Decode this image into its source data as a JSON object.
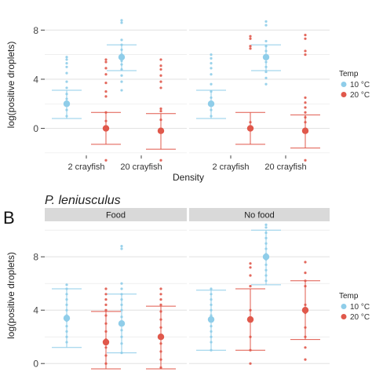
{
  "chart_data": [
    {
      "type": "scatter",
      "ylabel": "log(positive droplets)",
      "xlabel": "Density",
      "categories": [
        "2 crayfish",
        "20 crayfish"
      ],
      "yticks": [
        0,
        4,
        8
      ],
      "ylim": [
        -2.2,
        9.3
      ],
      "grid": true,
      "facets": [
        {
          "series": [
            {
              "name": "10 °C",
              "summary": [
                {
                  "mean": 2.0,
                  "lo": 0.8,
                  "hi": 3.1
                },
                {
                  "mean": 5.8,
                  "lo": 4.7,
                  "hi": 6.8
                }
              ],
              "points": [
                [
                  5.8,
                  5.6,
                  5.3,
                  5.0,
                  4.5,
                  3.8,
                  3.3,
                  2.8,
                  2.4,
                  2.0,
                  1.5,
                  1.0
                ],
                [
                  8.8,
                  8.6,
                  7.2,
                  6.8,
                  6.4,
                  6.0,
                  5.5,
                  5.2,
                  4.8,
                  4.3,
                  3.8,
                  3.1
                ]
              ]
            },
            {
              "name": "20 °C",
              "summary": [
                {
                  "mean": 0.0,
                  "lo": -1.3,
                  "hi": 1.3
                },
                {
                  "mean": -0.2,
                  "lo": -1.7,
                  "hi": 1.2
                }
              ],
              "points": [
                [
                  5.6,
                  5.4,
                  4.9,
                  4.4,
                  3.7,
                  3.0,
                  2.6,
                  1.3,
                  0.6,
                  -2.6
                ],
                [
                  5.6,
                  5.1,
                  4.8,
                  4.3,
                  3.8,
                  3.3,
                  1.6,
                  1.4,
                  0.7,
                  -2.6
                ]
              ]
            }
          ]
        },
        {
          "series": [
            {
              "name": "10 °C",
              "summary": [
                {
                  "mean": 2.0,
                  "lo": 0.8,
                  "hi": 3.1
                },
                {
                  "mean": 5.8,
                  "lo": 4.7,
                  "hi": 6.8
                }
              ],
              "points": [
                [
                  6.0,
                  5.7,
                  5.3,
                  4.9,
                  4.4,
                  3.6,
                  3.0,
                  2.5,
                  2.0,
                  1.5,
                  1.0
                ],
                [
                  8.7,
                  8.4,
                  7.1,
                  6.7,
                  6.3,
                  5.9,
                  5.4,
                  5.0,
                  4.6,
                  4.1,
                  3.6
                ]
              ]
            },
            {
              "name": "20 °C",
              "summary": [
                {
                  "mean": 0.0,
                  "lo": -1.3,
                  "hi": 1.3
                },
                {
                  "mean": -0.2,
                  "lo": -1.6,
                  "hi": 1.1
                }
              ],
              "points": [
                [
                  7.5,
                  7.3,
                  6.7,
                  6.5,
                  0.5
                ],
                [
                  7.6,
                  7.3,
                  6.3,
                  6.0,
                  2.5,
                  2.1,
                  1.7,
                  1.3,
                  0.9,
                  0.5,
                  -2.6
                ]
              ]
            }
          ]
        }
      ],
      "legend": {
        "title": "Temp",
        "entries": [
          "10 °C",
          "20 °C"
        ],
        "position": "right"
      }
    },
    {
      "type": "scatter",
      "panel_label": "B",
      "title": "P. leniusculus",
      "ylabel": "log(positive droplets)",
      "yticks": [
        0,
        4,
        8
      ],
      "ylim": [
        -0.4,
        10.6
      ],
      "grid": true,
      "facets": [
        {
          "strip": "Food",
          "series": [
            {
              "name": "10 °C",
              "summary": [
                {
                  "mean": 3.4,
                  "lo": 1.2,
                  "hi": 5.6
                },
                {
                  "mean": 3.0,
                  "lo": 0.8,
                  "hi": 5.2
                }
              ],
              "points": [
                [
                  5.9,
                  5.6,
                  5.2,
                  4.8,
                  4.4,
                  4.0,
                  3.6,
                  3.2,
                  2.8,
                  2.4,
                  2.0,
                  1.6
                ],
                [
                  8.8,
                  8.6,
                  6.0,
                  5.6,
                  5.2,
                  4.8,
                  4.4,
                  4.0,
                  3.5,
                  3.0,
                  2.5,
                  2.0,
                  1.5,
                  0.8
                ]
              ]
            },
            {
              "name": "20 °C",
              "summary": [
                {
                  "mean": 1.6,
                  "lo": -0.4,
                  "hi": 3.9
                },
                {
                  "mean": 2.0,
                  "lo": -0.4,
                  "hi": 4.3
                }
              ],
              "points": [
                [
                  5.6,
                  5.2,
                  4.8,
                  4.4,
                  4.0,
                  3.6,
                  3.0,
                  2.4,
                  1.8,
                  1.2,
                  0.6,
                  0.0
                ],
                [
                  5.6,
                  5.2,
                  4.8,
                  4.4,
                  3.9,
                  3.3,
                  2.7,
                  2.1,
                  1.5,
                  0.9,
                  0.3,
                  -0.3
                ]
              ]
            }
          ]
        },
        {
          "strip": "No food",
          "series": [
            {
              "name": "10 °C",
              "summary": [
                {
                  "mean": 3.3,
                  "lo": 1.0,
                  "hi": 5.5
                },
                {
                  "mean": 8.0,
                  "lo": 5.9,
                  "hi": 10.0
                }
              ],
              "points": [
                [
                  5.6,
                  5.2,
                  4.8,
                  4.4,
                  4.0,
                  3.6,
                  3.2,
                  2.8,
                  2.4,
                  2.0,
                  1.6,
                  1.0
                ],
                [
                  10.4,
                  10.2,
                  9.8,
                  9.4,
                  9.0,
                  8.6,
                  8.2,
                  7.8,
                  7.4,
                  7.0,
                  6.6,
                  6.2
                ]
              ]
            },
            {
              "name": "20 °C",
              "summary": [
                {
                  "mean": 3.3,
                  "lo": 1.0,
                  "hi": 5.6
                },
                {
                  "mean": 4.0,
                  "lo": 1.8,
                  "hi": 6.2
                }
              ],
              "points": [
                [
                  7.5,
                  7.2,
                  6.6,
                  5.8,
                  4.0,
                  2.0,
                  1.0,
                  0.0
                ],
                [
                  7.6,
                  6.8,
                  6.2,
                  5.8,
                  4.4,
                  3.8,
                  2.7,
                  2.0,
                  1.2,
                  0.3
                ]
              ]
            }
          ]
        }
      ],
      "legend": {
        "title": "Temp",
        "entries": [
          "10 °C",
          "20 °C"
        ],
        "position": "right"
      }
    }
  ],
  "colors": {
    "warm": "#e0584b",
    "cold": "#8fcde9",
    "strip": "#d9d9d9",
    "grid": "#e4e4e4"
  }
}
